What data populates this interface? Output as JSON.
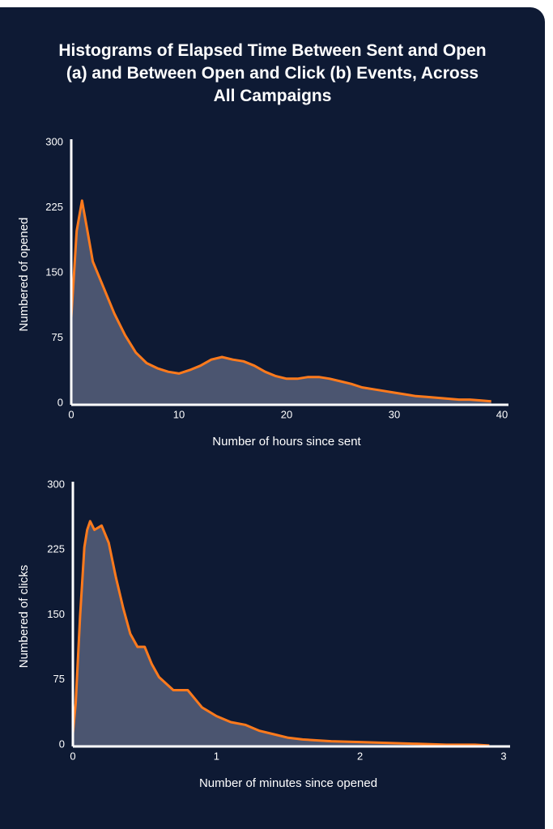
{
  "title": "Histograms of Elapsed Time Between Sent and Open (a) and Between Open and Click (b) Events, Across All Campaigns",
  "chart_data": [
    {
      "type": "area",
      "x_label": "Number of hours since sent",
      "y_label": "Numbered of opened",
      "xlim": [
        0,
        40
      ],
      "ylim": [
        0,
        300
      ],
      "xticks": [
        0,
        10,
        20,
        30,
        40
      ],
      "yticks": [
        0,
        75,
        150,
        225,
        300
      ],
      "grid": false,
      "color": "#ff7a1c",
      "fill_color": "#4b5570",
      "x": [
        0,
        0.5,
        1,
        1.5,
        2,
        3,
        4,
        5,
        6,
        7,
        8,
        9,
        10,
        11,
        12,
        13,
        14,
        15,
        16,
        17,
        18,
        19,
        20,
        21,
        22,
        23,
        24,
        25,
        26,
        27,
        28,
        29,
        30,
        31,
        32,
        33,
        34,
        35,
        36,
        37,
        38,
        39
      ],
      "values": [
        100,
        200,
        235,
        200,
        165,
        135,
        105,
        80,
        60,
        48,
        42,
        38,
        36,
        40,
        45,
        52,
        55,
        52,
        50,
        45,
        38,
        33,
        30,
        30,
        32,
        32,
        30,
        27,
        24,
        20,
        18,
        16,
        14,
        12,
        10,
        9,
        8,
        7,
        6,
        6,
        5,
        4
      ]
    },
    {
      "type": "area",
      "x_label": "Number of minutes since opened",
      "y_label": "Numbered of clicks",
      "xlim": [
        0,
        3
      ],
      "ylim": [
        0,
        300
      ],
      "xticks": [
        0,
        1,
        2,
        3
      ],
      "yticks": [
        0,
        75,
        150,
        225,
        300
      ],
      "grid": false,
      "color": "#ff7a1c",
      "fill_color": "#4b5570",
      "x": [
        0,
        0.02,
        0.05,
        0.08,
        0.1,
        0.12,
        0.15,
        0.2,
        0.25,
        0.3,
        0.35,
        0.4,
        0.45,
        0.5,
        0.55,
        0.6,
        0.7,
        0.8,
        0.9,
        1.0,
        1.1,
        1.2,
        1.3,
        1.4,
        1.5,
        1.6,
        1.8,
        2.0,
        2.2,
        2.4,
        2.6,
        2.8,
        2.9
      ],
      "values": [
        15,
        50,
        150,
        230,
        250,
        260,
        250,
        255,
        235,
        195,
        160,
        130,
        115,
        115,
        95,
        80,
        65,
        65,
        45,
        35,
        28,
        25,
        18,
        14,
        10,
        8,
        6,
        5,
        4,
        3,
        2,
        2,
        1
      ]
    }
  ]
}
